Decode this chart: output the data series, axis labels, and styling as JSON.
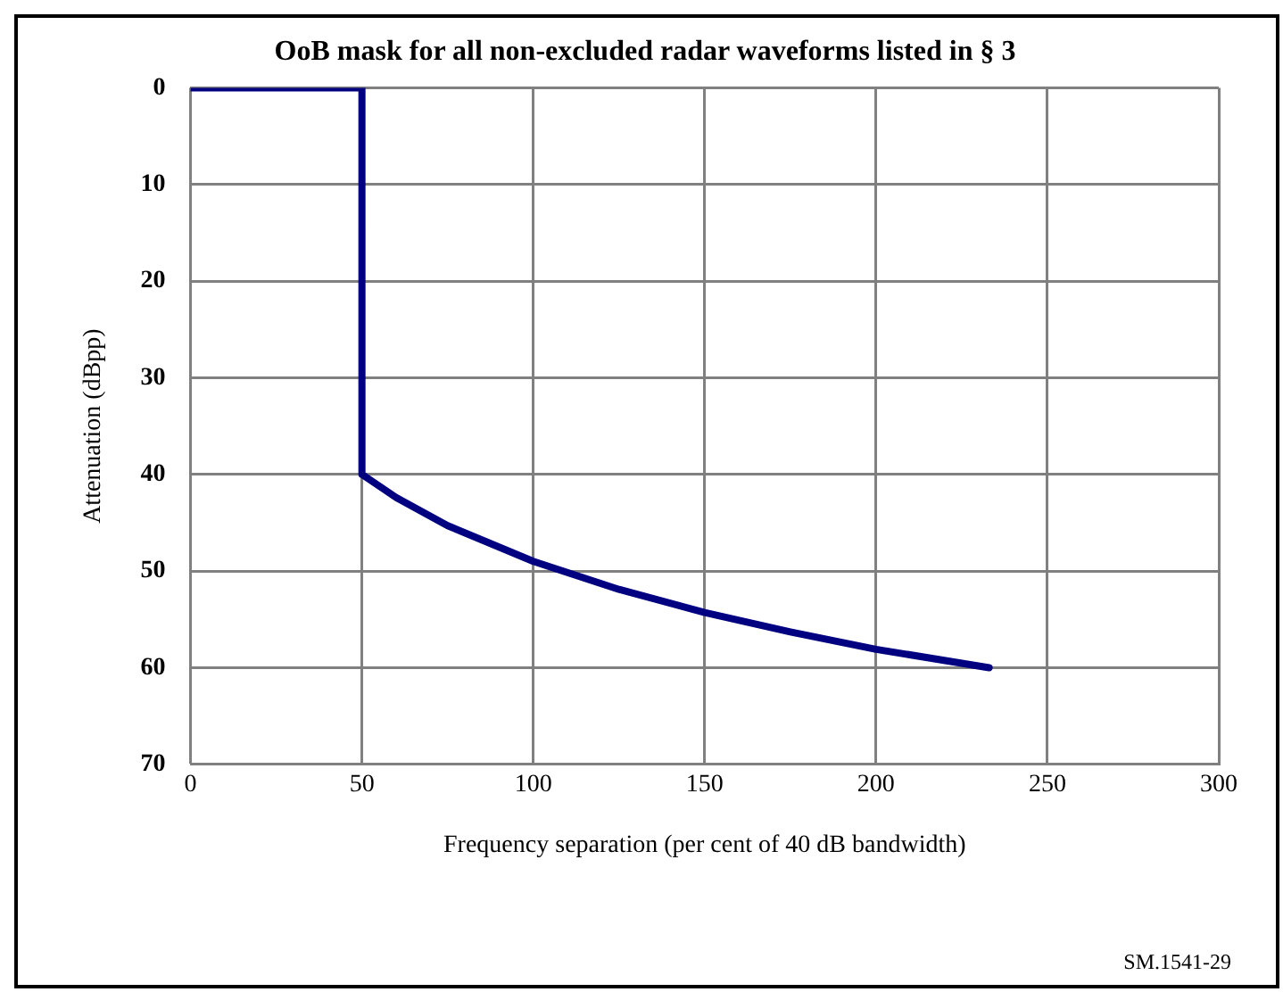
{
  "chart_data": {
    "type": "line",
    "title": "OoB mask for all non-excluded radar waveforms listed in § 3",
    "xlabel": "Frequency separation (per cent of 40 dB bandwidth)",
    "ylabel": "Attenuation (dBpp)",
    "x": [
      0,
      50,
      50,
      60,
      75,
      100,
      125,
      150,
      175,
      200,
      233
    ],
    "series": [
      {
        "color": "#000080",
        "values": [
          0,
          0,
          40,
          42.4,
          45.3,
          49,
          51.9,
          54.3,
          56.3,
          58.1,
          60
        ]
      }
    ],
    "xlim": [
      0,
      300
    ],
    "xticks": [
      0,
      50,
      100,
      150,
      200,
      250,
      300
    ],
    "ylim": [
      70,
      0
    ],
    "yticks": [
      0,
      10,
      20,
      30,
      40,
      50,
      60,
      70
    ],
    "grid": true,
    "legend": false,
    "marker": "none",
    "line_style": "solid",
    "annotations": [
      "SM.1541-29"
    ]
  }
}
